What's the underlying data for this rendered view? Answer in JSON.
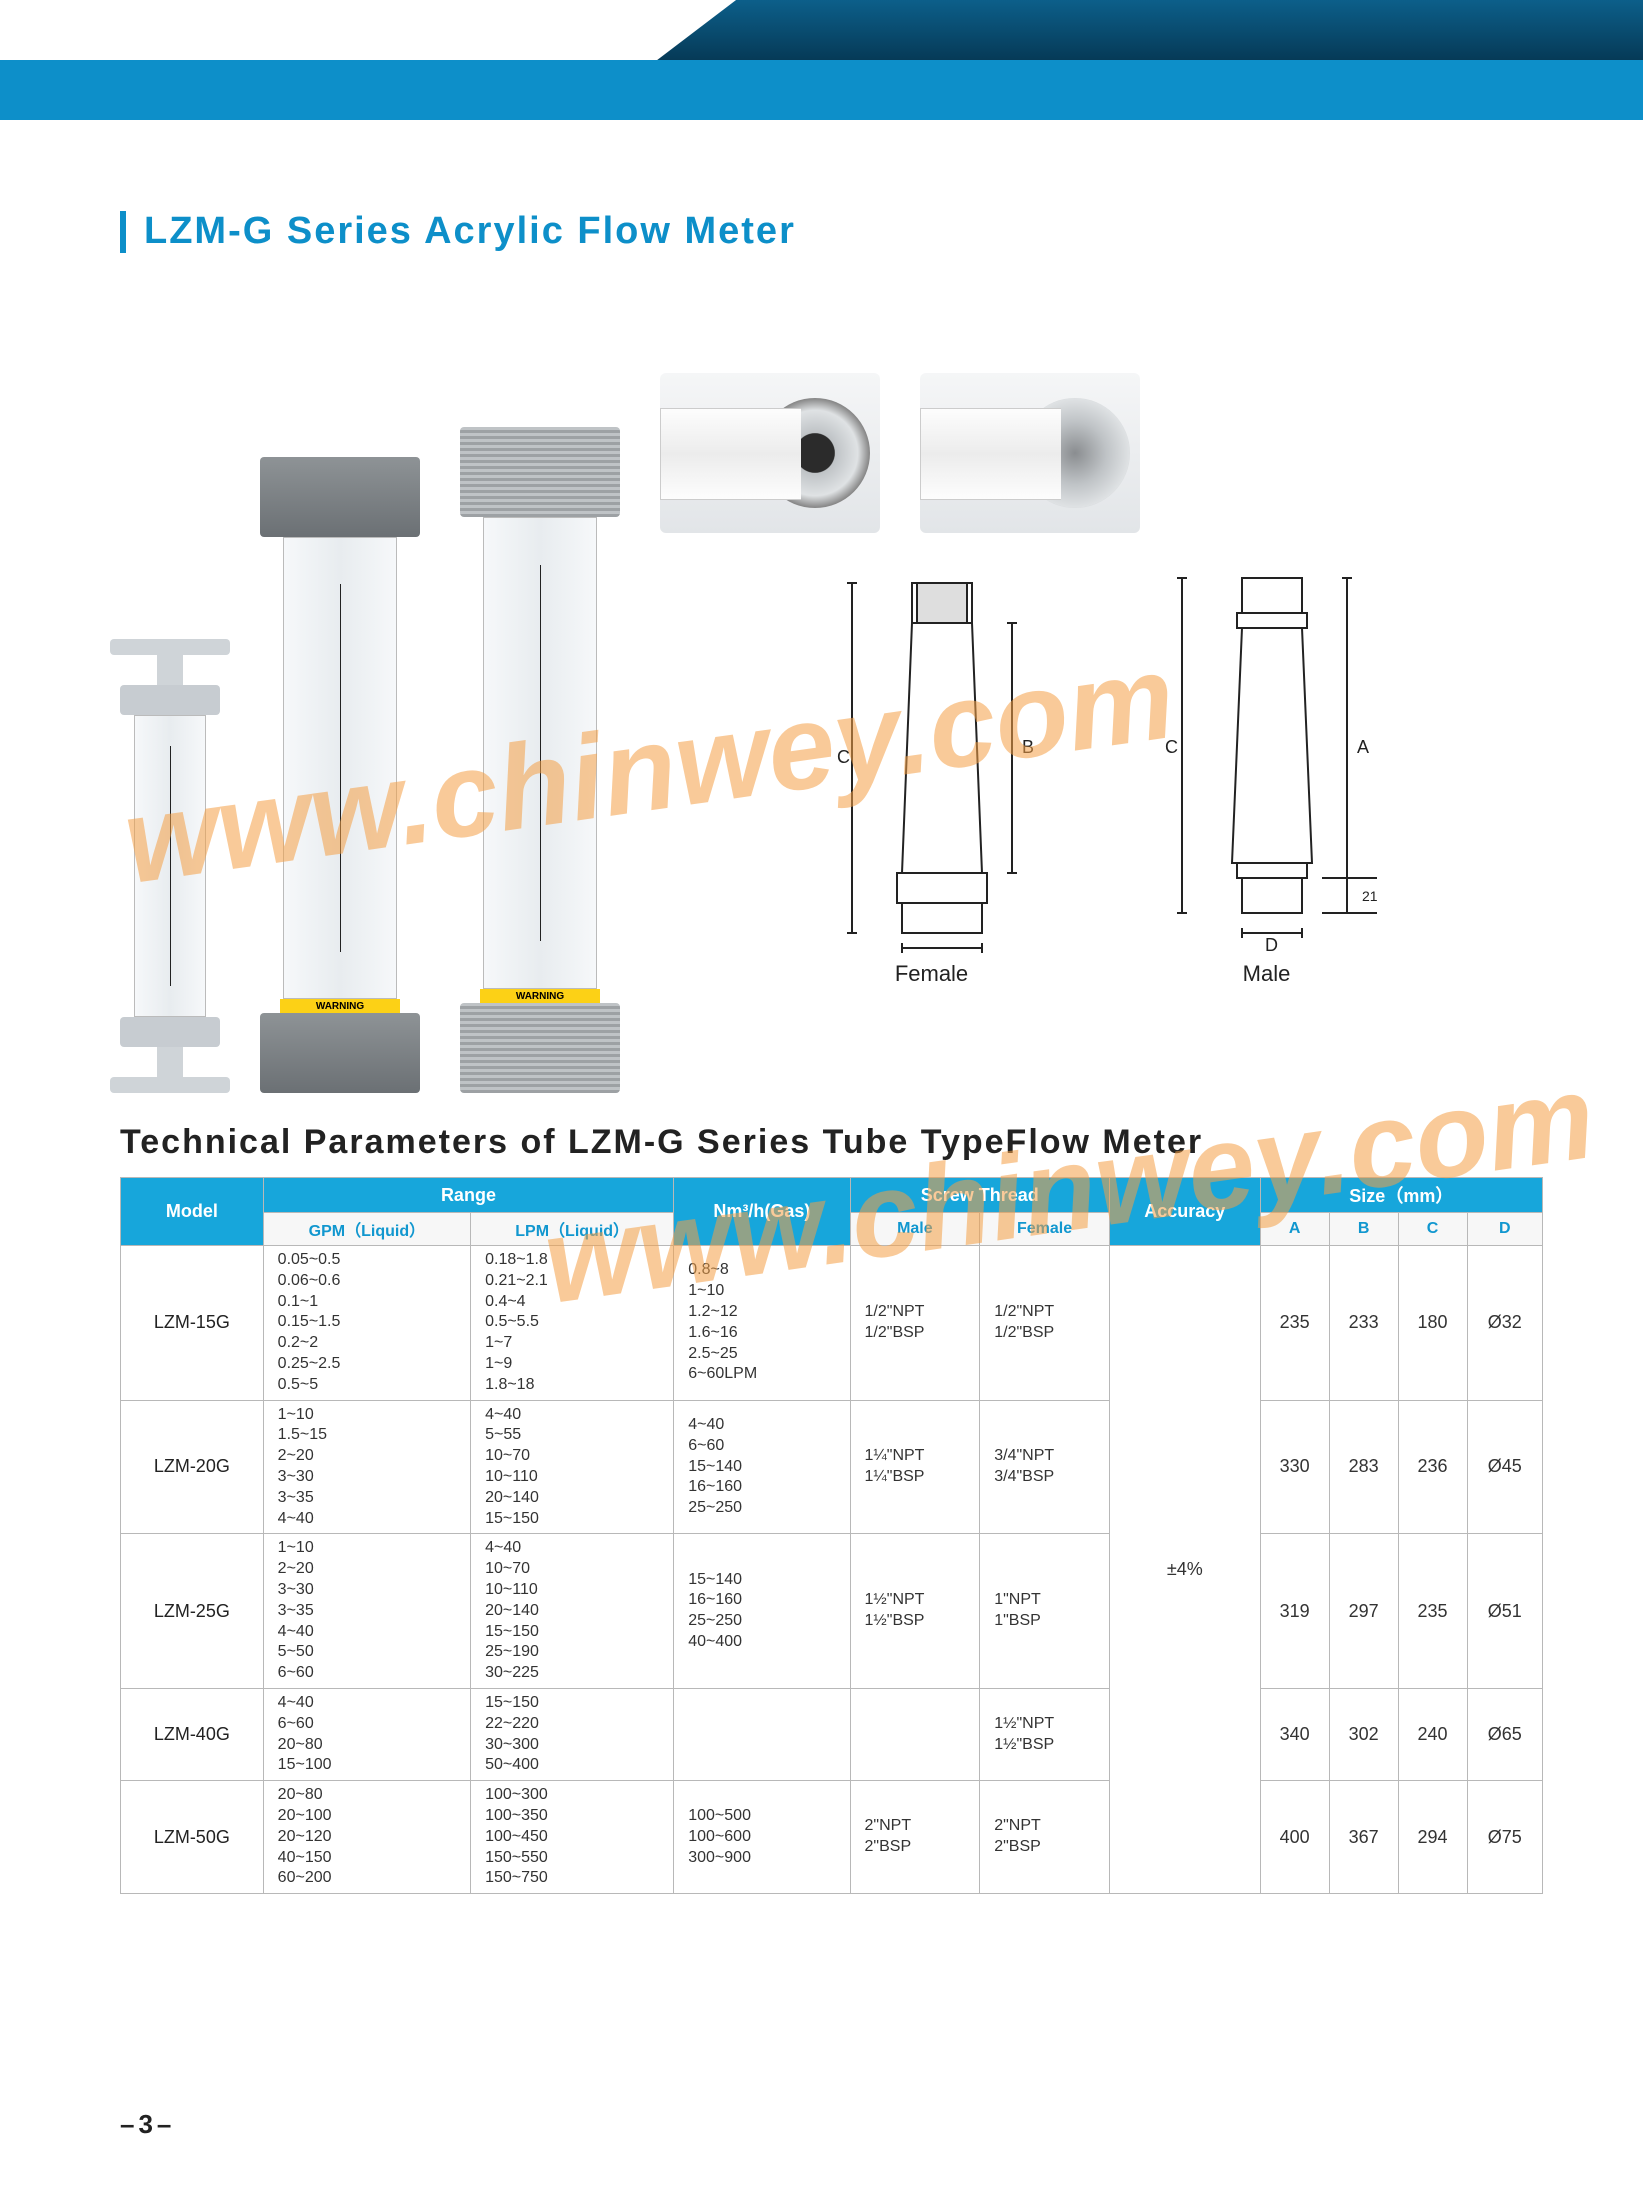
{
  "title": "LZM-G Series Acrylic Flow Meter",
  "section_title": "Technical Parameters of LZM-G  Series Tube TypeFlow Meter",
  "page_number": "–3–",
  "watermark": "www.chinwey.com",
  "diagram_labels": {
    "female": "Female",
    "male": "Male"
  },
  "colors": {
    "brand_blue": "#0d8fc9",
    "banner_dark_top": "#0c5f8a",
    "banner_dark_bottom": "#063a57",
    "header_bg": "#17a6db",
    "subheader_text": "#1197cf",
    "warning_yellow": "#fcd116",
    "watermark": "#f5a046",
    "border": "#b8b8b8"
  },
  "table": {
    "headers": {
      "model": "Model",
      "range": "Range",
      "gpm": "GPM（Liquid）",
      "lpm": "LPM（Liquid）",
      "gas": "Nm³/h(Gas)",
      "screw": "Screw Thread",
      "male": "Male",
      "female": "Female",
      "accuracy": "Accuracy",
      "size": "Size（mm）",
      "A": "A",
      "B": "B",
      "C": "C",
      "D": "D"
    },
    "accuracy": "±4%",
    "rows": [
      {
        "model": "LZM-15G",
        "gpm": "0.05~0.5\n0.06~0.6\n0.1~1\n0.15~1.5\n0.2~2\n0.25~2.5\n0.5~5",
        "lpm": "0.18~1.8\n0.21~2.1\n0.4~4\n0.5~5.5\n1~7\n1~9\n1.8~18",
        "gas": "0.8~8\n1~10\n1.2~12\n1.6~16\n2.5~25\n6~60LPM",
        "male": "1/2\"NPT\n1/2\"BSP",
        "female": "1/2\"NPT\n1/2\"BSP",
        "A": "235",
        "B": "233",
        "C": "180",
        "D": "Ø32"
      },
      {
        "model": "LZM-20G",
        "gpm": "1~10\n1.5~15\n2~20\n3~30\n3~35\n4~40",
        "lpm": "4~40\n5~55\n10~70\n10~110\n20~140\n15~150",
        "gas": "4~40\n6~60\n15~140\n16~160\n25~250",
        "male": "1¼\"NPT\n1¼\"BSP",
        "female": "3/4\"NPT\n3/4\"BSP",
        "A": "330",
        "B": "283",
        "C": "236",
        "D": "Ø45"
      },
      {
        "model": "LZM-25G",
        "gpm": "1~10\n2~20\n3~30\n3~35\n4~40\n5~50\n6~60",
        "lpm": "4~40\n10~70\n10~110\n20~140\n15~150\n25~190\n30~225",
        "gas": "15~140\n16~160\n25~250\n40~400",
        "male": "1½\"NPT\n1½\"BSP",
        "female": "1\"NPT\n1\"BSP",
        "A": "319",
        "B": "297",
        "C": "235",
        "D": "Ø51"
      },
      {
        "model": "LZM-40G",
        "gpm": "4~40\n6~60\n20~80\n15~100",
        "lpm": "15~150\n22~220\n30~300\n50~400",
        "gas": "",
        "male": "",
        "female": "1½\"NPT\n1½\"BSP",
        "A": "340",
        "B": "302",
        "C": "240",
        "D": "Ø65"
      },
      {
        "model": "LZM-50G",
        "gpm": "20~80\n20~100\n20~120\n40~150\n60~200",
        "lpm": "100~300\n100~350\n100~450\n150~550\n150~750",
        "gas": "100~500\n100~600\n300~900",
        "male": "2\"NPT\n2\"BSP",
        "female": "2\"NPT\n2\"BSP",
        "A": "400",
        "B": "367",
        "C": "294",
        "D": "Ø75"
      }
    ]
  }
}
